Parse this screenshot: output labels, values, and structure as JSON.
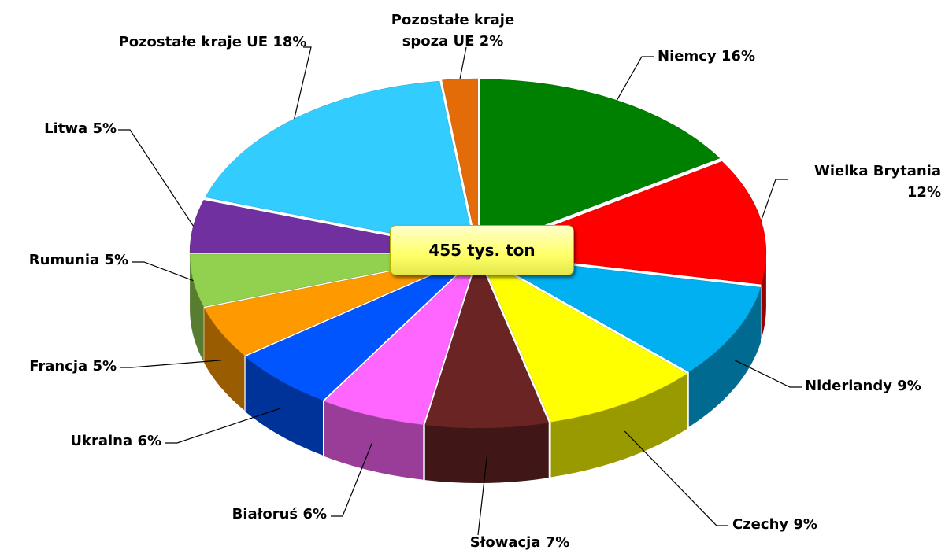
{
  "chart_data": {
    "type": "pie",
    "center_label": "455 tys. ton",
    "categories": [
      "Niemcy",
      "Wielka Brytania",
      "Niderlandy",
      "Czechy",
      "Słowacja",
      "Białoruś",
      "Ukraina",
      "Francja",
      "Rumunia",
      "Litwa",
      "Pozostałe kraje UE",
      "Pozostałe kraje spoza UE"
    ],
    "values": [
      16,
      12,
      9,
      9,
      7,
      6,
      6,
      5,
      5,
      5,
      18,
      2
    ],
    "value_labels": [
      "16%",
      "12%",
      "9%",
      "9%",
      "7%",
      "6%",
      "6%",
      "5%",
      "5%",
      "5%",
      "18%",
      "2%"
    ],
    "colors": [
      "#008000",
      "#ff0000",
      "#00b0f0",
      "#ffff00",
      "#6b2424",
      "#ff66ff",
      "#0055ff",
      "#ff9900",
      "#92d050",
      "#7030a0",
      "#33ccff",
      "#e36c09"
    ]
  }
}
